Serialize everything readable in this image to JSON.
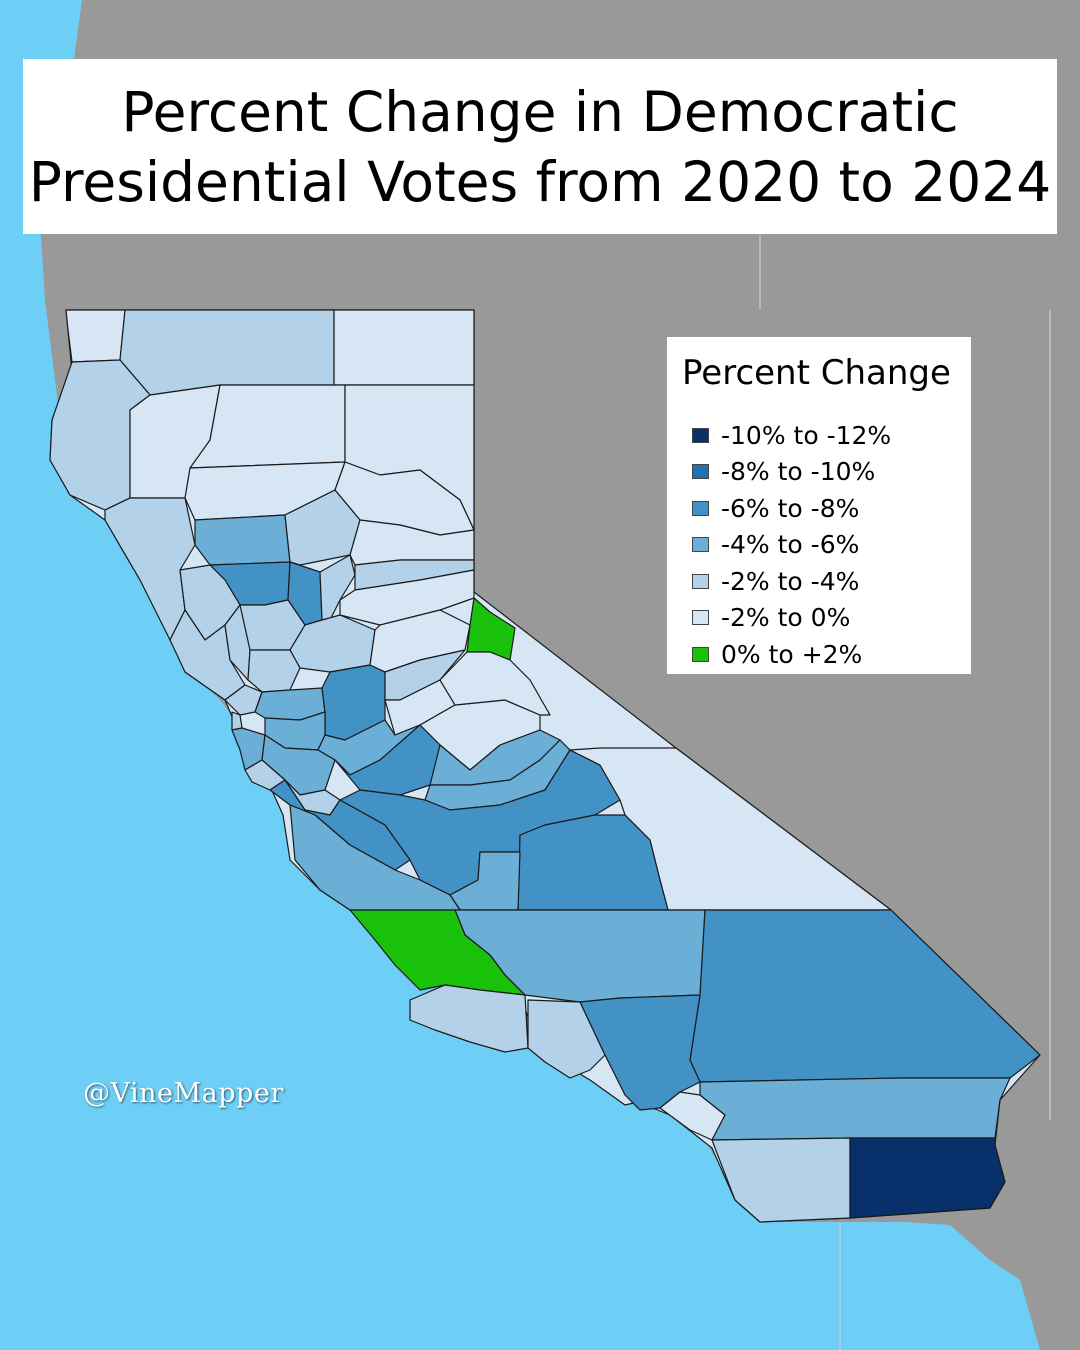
{
  "title": {
    "line1": "Percent Change in Democratic",
    "line2": "Presidential Votes from 2020 to 2024"
  },
  "legend": {
    "title": "Percent Change",
    "items": [
      {
        "label": "-10% to -12%",
        "color": "#08306b"
      },
      {
        "label": "-8% to -10%",
        "color": "#2171b5"
      },
      {
        "label": "-6% to -8%",
        "color": "#4292c6"
      },
      {
        "label": "-4% to -6%",
        "color": "#6baed6"
      },
      {
        "label": "-2% to -4%",
        "color": "#b3d1e8"
      },
      {
        "label": "-2% to 0%",
        "color": "#d6e6f5"
      },
      {
        "label": "0% to +2%",
        "color": "#19c10b"
      }
    ]
  },
  "watermark": "@VineMapper",
  "colors": {
    "ocean": "#6ecff6",
    "land_other": "#999999"
  }
}
